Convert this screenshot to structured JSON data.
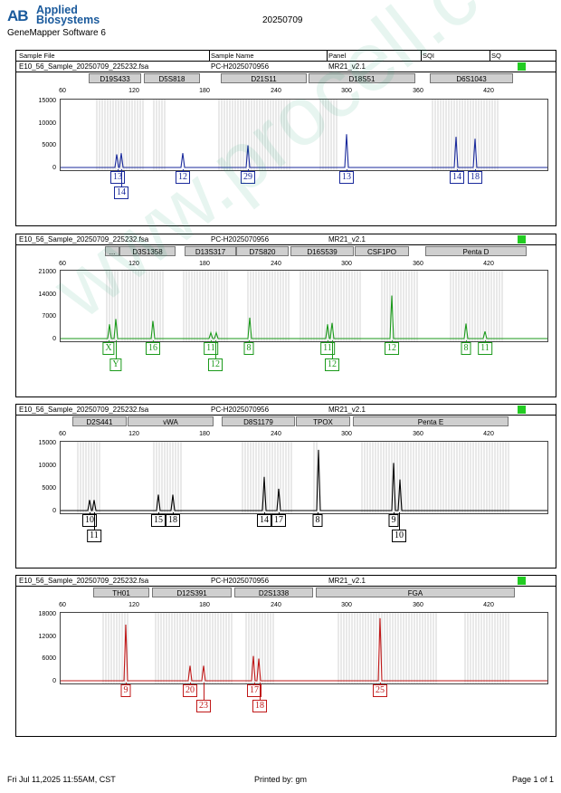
{
  "header": {
    "brand_mark": "AB",
    "brand_line1": "Applied",
    "brand_line2": "Biosystems",
    "software": "GeneMapper Software 6",
    "date": "20250709"
  },
  "columns": {
    "sample_file": "Sample File",
    "sample_name": "Sample Name",
    "panel": "Panel",
    "sqi": "SQI",
    "sq": "SQ"
  },
  "x_ticks": [
    "60",
    "120",
    "180",
    "240",
    "300",
    "360",
    "420"
  ],
  "panels": [
    {
      "file": "E10_56_Sample_20250709_225232.fsa",
      "name": "PC-H2025070956",
      "panel": "MR21_v2.1",
      "color": "#1a2a9c",
      "y_ticks": [
        "15000",
        "10000",
        "5000",
        "0"
      ],
      "markers": [
        "D19S433",
        "D5S818",
        "D21S11",
        "D18S51",
        "D6S1043"
      ],
      "alleles": [
        "13",
        "14",
        "12",
        "29",
        "13",
        "14",
        "18"
      ]
    },
    {
      "file": "E10_56_Sample_20250709_225232.fsa",
      "name": "PC-H2025070956",
      "panel": "MR21_v2.1",
      "color": "#1b9a1b",
      "y_ticks": [
        "21000",
        "14000",
        "7000",
        "0"
      ],
      "markers": [
        "...",
        "D3S1358",
        "D13S317",
        "D7S820",
        "D16S539",
        "CSF1PO",
        "Penta D"
      ],
      "alleles": [
        "X",
        "Y",
        "16",
        "11",
        "12",
        "8",
        "11",
        "12",
        "12",
        "8",
        "11"
      ]
    },
    {
      "file": "E10_56_Sample_20250709_225232.fsa",
      "name": "PC-H2025070956",
      "panel": "MR21_v2.1",
      "color": "#000000",
      "y_ticks": [
        "15000",
        "10000",
        "5000",
        "0"
      ],
      "markers": [
        "D2S441",
        "vWA",
        "D8S1179",
        "TPOX",
        "Penta E"
      ],
      "alleles": [
        "10",
        "11",
        "15",
        "18",
        "14",
        "17",
        "8",
        "9",
        "10"
      ]
    },
    {
      "file": "E10_56_Sample_20250709_225232.fsa",
      "name": "PC-H2025070956",
      "panel": "MR21_v2.1",
      "color": "#c01818",
      "y_ticks": [
        "18000",
        "12000",
        "6000",
        "0"
      ],
      "markers": [
        "TH01",
        "D12S391",
        "D2S1338",
        "FGA"
      ],
      "alleles": [
        "9",
        "20",
        "23",
        "17",
        "18",
        "25"
      ]
    }
  ],
  "footer": {
    "printed_at": "Fri Jul 11,2025 11:55AM, CST",
    "printed_by": "Printed by: gm",
    "page": "Page 1 of 1"
  },
  "watermark": "www.procell.com.cn",
  "sq_color": "#22cc22"
}
